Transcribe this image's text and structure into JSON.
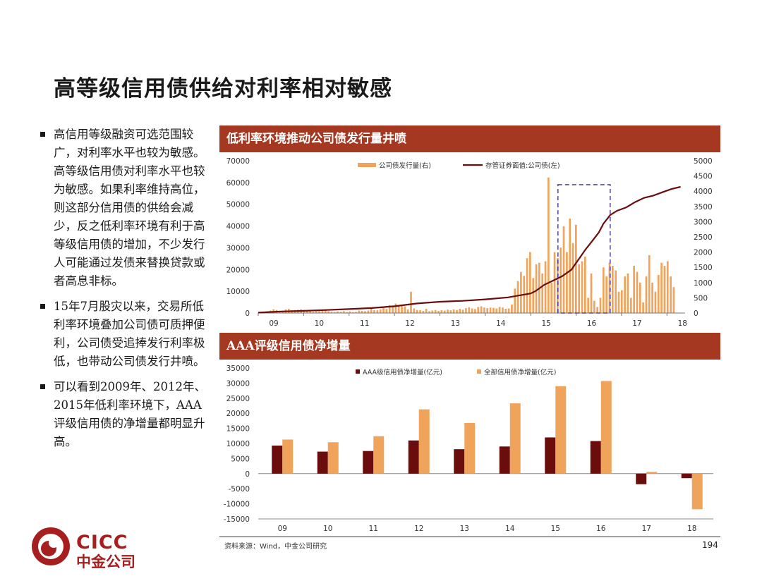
{
  "page": {
    "title": "高等级信用债供给对利率相对敏感",
    "bullets": [
      "高信用等级融资可选范围较广，对利率水平也较为敏感。高等级信用债对利率水平也较为敏感。如果利率维持高位，则这部分信用债的供给会减少，反之低利率环境有利于高等级信用债的增加，不少发行人可能通过发债来替换贷款或者高息非标。",
      "15年7月股灾以来，交易所低利率环境叠加公司债可质押便利，公司债受追捧发行利率极低，也带动公司债发行井喷。",
      "可以看到2009年、2012年、2015年低利率环境下，AAA评级信用债的净增量都明显升高。"
    ],
    "source": "资料来源：Wind，中金公司研究",
    "page_number": "194",
    "logo": {
      "en": "CICC",
      "cn": "中金公司",
      "color": "#a61e1e"
    },
    "colors": {
      "banner": "#a43820",
      "dark_red": "#6b0d0d",
      "orange": "#f0a35a",
      "dashed_box": "#5a4a9a"
    }
  },
  "chart_data": [
    {
      "type": "bar+line",
      "title": "低利率环境推动公司债发行量井喷",
      "x_ticks": [
        "09",
        "10",
        "11",
        "12",
        "13",
        "14",
        "15",
        "16",
        "17",
        "18"
      ],
      "y_left": {
        "min": 0,
        "max": 70000,
        "ticks": [
          "0",
          "10000",
          "20000",
          "30000",
          "40000",
          "50000",
          "60000",
          "70000"
        ]
      },
      "y_right": {
        "min": 0,
        "max": 5000,
        "ticks": [
          "0",
          "500",
          "1000",
          "1500",
          "2000",
          "2500",
          "3000",
          "3500",
          "4000",
          "4500",
          "5000"
        ]
      },
      "legend": [
        "公司债发行量(右)",
        "存管证券面值:公司债(左)"
      ],
      "highlight": {
        "x_start": 15.6,
        "x_end": 16.75,
        "y_top": 59000,
        "style": "dashed"
      },
      "series": [
        {
          "name": "公司债发行量(右)",
          "axis": "right",
          "kind": "bar",
          "values": [
            10,
            20,
            40,
            60,
            80,
            120,
            100,
            60,
            40,
            120,
            140,
            90,
            100,
            110,
            120,
            100,
            80,
            60,
            40,
            80,
            60,
            70,
            90,
            60,
            40,
            30,
            50,
            40,
            60,
            30,
            50,
            30,
            40,
            80,
            70,
            60,
            80,
            140,
            100,
            90,
            120,
            200,
            130,
            260,
            200,
            310,
            220,
            250,
            220,
            120,
            700,
            150,
            100,
            90,
            70,
            140,
            60,
            80,
            100,
            70,
            90,
            80,
            110,
            90,
            120,
            100,
            140,
            110,
            160,
            190,
            150,
            130,
            200,
            220,
            180,
            160,
            180,
            170,
            150,
            200,
            180,
            140,
            150,
            280,
            800,
            1050,
            1350,
            1220,
            1800,
            2000,
            1150,
            1600,
            1650,
            1300,
            1700,
            4450,
            1000,
            2000,
            1800,
            2150,
            2850,
            2000,
            3100,
            2300,
            2900,
            1600,
            1700,
            1850,
            500,
            1300,
            400,
            200,
            500,
            1500,
            1200,
            1650,
            1550,
            1400,
            700,
            750,
            1200,
            1300,
            500,
            1550,
            1350,
            1000,
            350,
            1200,
            1900,
            1000,
            700,
            1250,
            1650,
            1550,
            1700,
            1200,
            850
          ],
          "start": 9.0,
          "end": 18.15
        },
        {
          "name": "存管证券面值:公司债(左)",
          "axis": "left",
          "kind": "line",
          "x": [
            9.0,
            9.5,
            10.0,
            10.5,
            11.0,
            11.5,
            12.0,
            12.5,
            13.0,
            13.5,
            14.0,
            14.5,
            15.0,
            15.1,
            15.3,
            15.5,
            15.7,
            15.9,
            16.0,
            16.1,
            16.2,
            16.35,
            16.5,
            16.6,
            16.75,
            16.9,
            17.1,
            17.3,
            17.5,
            17.7,
            17.9,
            18.1,
            18.3
          ],
          "y": [
            200,
            700,
            1000,
            1400,
            1800,
            2300,
            3100,
            4400,
            5200,
            5600,
            6300,
            7200,
            9000,
            10000,
            13000,
            15000,
            17000,
            20000,
            23000,
            26000,
            29000,
            33000,
            37000,
            41000,
            45000,
            47000,
            48500,
            51000,
            53000,
            54000,
            55500,
            57000,
            58000
          ]
        }
      ]
    },
    {
      "type": "bar",
      "title": "AAA评级信用债净增量",
      "categories": [
        "09",
        "10",
        "11",
        "12",
        "13",
        "14",
        "15",
        "16",
        "17",
        "18"
      ],
      "ylim": [
        -15000,
        35000
      ],
      "y_ticks": [
        "-15000",
        "-10000",
        "-5000",
        "0",
        "5000",
        "10000",
        "15000",
        "20000",
        "25000",
        "30000",
        "35000"
      ],
      "series": [
        {
          "name": "AAA级信用债净增量(亿元)",
          "values": [
            9300,
            7300,
            7500,
            11000,
            8100,
            9000,
            12000,
            10800,
            -3500,
            -1500
          ]
        },
        {
          "name": "全部信用债净增量(亿元)",
          "values": [
            11300,
            10400,
            12400,
            21300,
            16800,
            23300,
            29000,
            30700,
            600,
            -11800
          ]
        }
      ]
    }
  ]
}
